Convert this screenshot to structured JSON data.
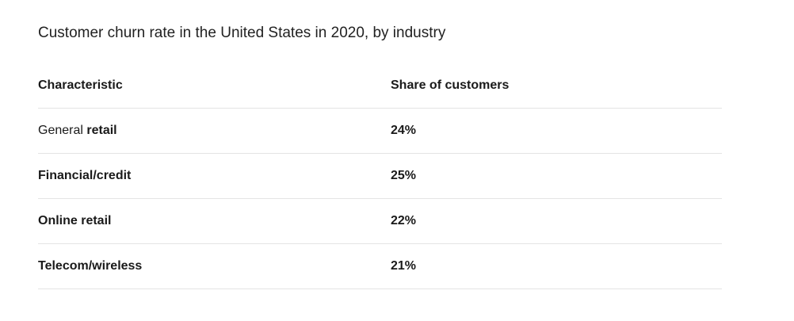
{
  "title": "Customer churn rate in the United States in 2020, by industry",
  "table": {
    "headers": [
      "Characteristic",
      "Share of customers"
    ]
  },
  "chart_data": {
    "type": "table",
    "title": "Customer churn rate in the United States in 2020, by industry",
    "columns": [
      "Characteristic",
      "Share of customers"
    ],
    "rows": [
      {
        "characteristic_prefix": "General",
        "characteristic_bold": "retail",
        "characteristic": "General retail",
        "value": 24,
        "value_label": "24%"
      },
      {
        "characteristic_prefix": "",
        "characteristic_bold": "Financial/credit",
        "characteristic": "Financial/credit",
        "value": 25,
        "value_label": "25%"
      },
      {
        "characteristic_prefix": "",
        "characteristic_bold": "Online retail",
        "characteristic": "Online retail",
        "value": 22,
        "value_label": "22%"
      },
      {
        "characteristic_prefix": "",
        "characteristic_bold": "Telecom/wireless",
        "characteristic": "Telecom/wireless",
        "value": 21,
        "value_label": "21%"
      }
    ]
  }
}
